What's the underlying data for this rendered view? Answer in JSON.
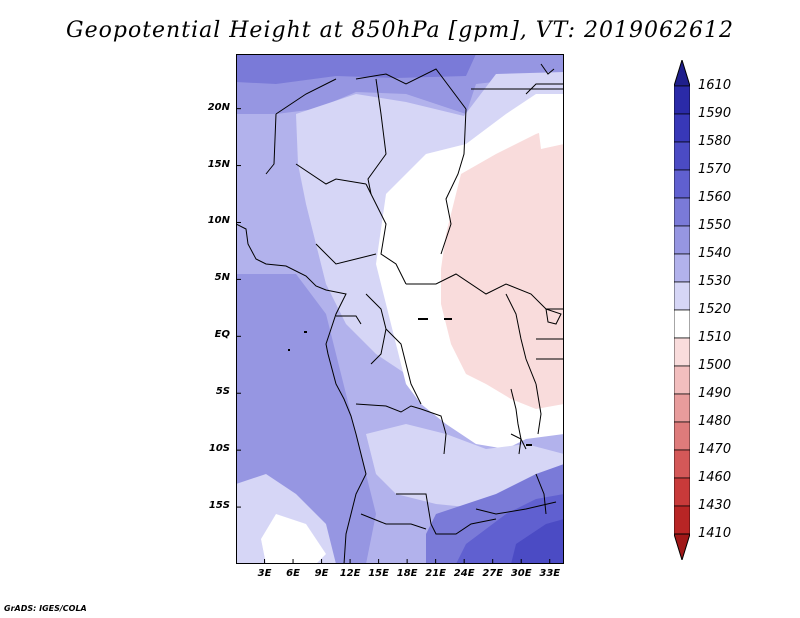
{
  "title": "Geopotential Height at 850hPa [gpm], VT: 2019062612",
  "footer": "GrADS: IGES/COLA",
  "map": {
    "lat_labels": [
      "20N",
      "15N",
      "10N",
      "5N",
      "EQ",
      "5S",
      "10S",
      "15S"
    ],
    "lon_labels": [
      "3E",
      "6E",
      "9E",
      "12E",
      "15E",
      "18E",
      "21E",
      "24E",
      "27E",
      "30E",
      "33E"
    ],
    "lat_values": [
      20,
      15,
      10,
      5,
      0,
      -5,
      -10,
      -15
    ],
    "lon_values": [
      3,
      6,
      9,
      12,
      15,
      18,
      21,
      24,
      27,
      30,
      33
    ],
    "lat_range": [
      -20,
      24.8
    ],
    "lon_range": [
      0,
      34.5
    ],
    "variable": "Geopotential Height",
    "level": "850hPa",
    "units": "gpm",
    "valid_time": "2019062612"
  },
  "colorbar": {
    "labels": [
      "1610",
      "1590",
      "1580",
      "1570",
      "1560",
      "1550",
      "1540",
      "1530",
      "1520",
      "1510",
      "1500",
      "1490",
      "1480",
      "1470",
      "1460",
      "1430",
      "1410"
    ],
    "colors": [
      "#1f1f8c",
      "#2a2aa8",
      "#3838b8",
      "#4b4bc4",
      "#6060d0",
      "#7a7ad8",
      "#9696e2",
      "#b2b2ec",
      "#d6d6f6",
      "#ffffff",
      "#f9dcdc",
      "#f2bebe",
      "#e89c9c",
      "#de7b7b",
      "#d45858",
      "#c83a3a",
      "#b82525",
      "#a01818"
    ],
    "top_color": "#1f1f8c",
    "bottom_color": "#a01818"
  }
}
